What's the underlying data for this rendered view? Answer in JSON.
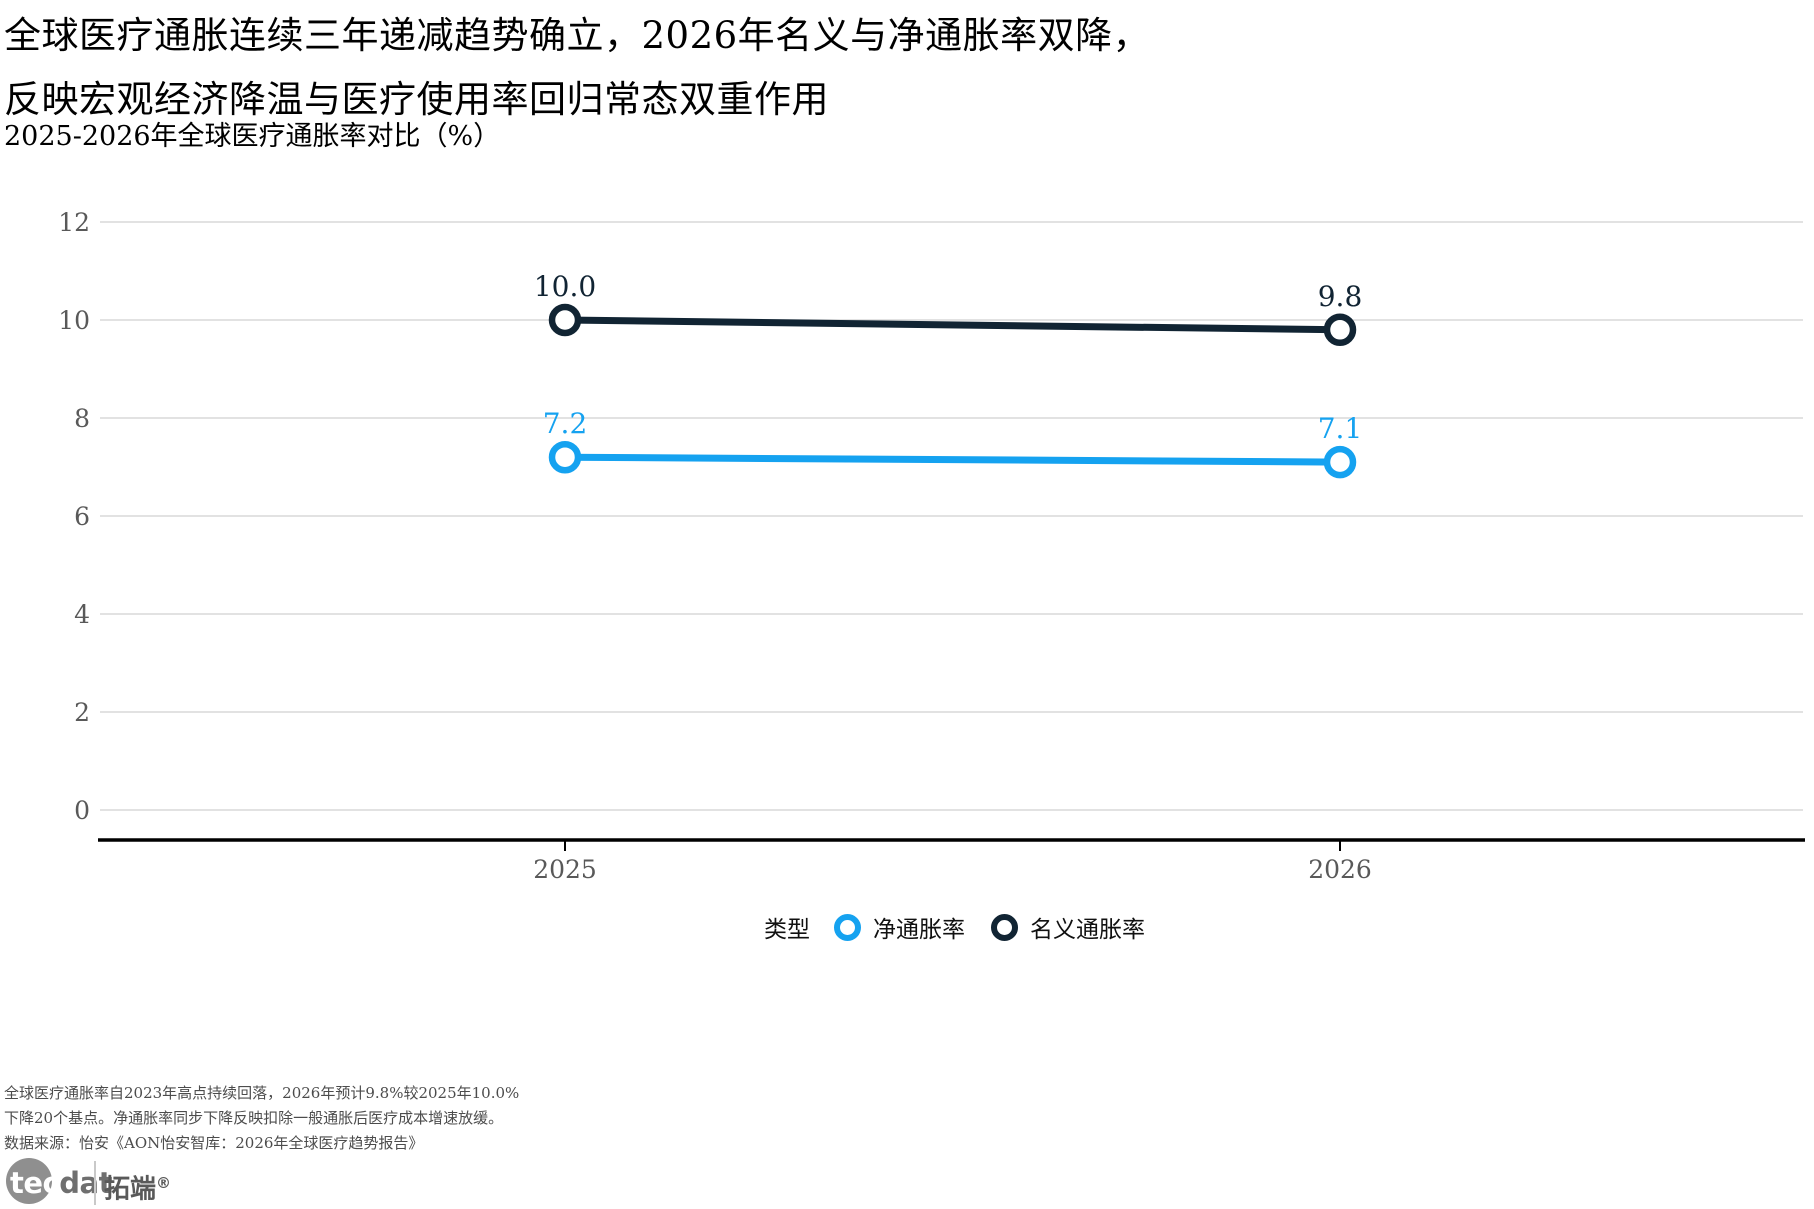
{
  "title": {
    "line1": "全球医疗通胀连续三年递减趋势确立，2026年名义与净通胀率双降，",
    "line2": "反映宏观经济降温与医疗使用率回归常态双重作用"
  },
  "subtitle": "2025-2026年全球医疗通胀率对比（%）",
  "chart_data": {
    "type": "line",
    "title": "全球医疗通胀连续三年递减趋势确立，2026年名义与净通胀率双降，反映宏观经济降温与医疗使用率回归常态双重作用",
    "subtitle": "2025-2026年全球医疗通胀率对比（%）",
    "categories": [
      "2025",
      "2026"
    ],
    "series": [
      {
        "name": "净通胀率",
        "values": [
          7.2,
          7.1
        ],
        "labels": [
          "7.2",
          "7.1"
        ],
        "color": "#15a2f0"
      },
      {
        "name": "名义通胀率",
        "values": [
          10.0,
          9.8
        ],
        "labels": [
          "10.0",
          "9.8"
        ],
        "color": "#112433"
      }
    ],
    "xlabel": "",
    "ylabel": "",
    "ylim": [
      0,
      12
    ],
    "yticks": [
      0,
      2,
      4,
      6,
      8,
      10,
      12
    ],
    "grid": true,
    "legend_title": "类型",
    "legend_position": "bottom",
    "colors": {
      "grid_line": "#d9d9d9",
      "axis_line": "#000000",
      "tick_label": "#595959",
      "marker_fill": "#ffffff"
    }
  },
  "footer": {
    "note_line1": "全球医疗通胀率自2023年高点持续回落，2026年预计9.8%较2025年10.0%",
    "note_line2": "下降20个基点。净通胀率同步下降反映扣除一般通胀后医疗成本增速放缓。",
    "source": "数据来源：怡安《AON怡安智库：2026年全球医疗趋势报告》"
  },
  "logo": {
    "tec": "tec",
    "dat": "dat",
    "brand": "拓端",
    "reg": "®"
  }
}
